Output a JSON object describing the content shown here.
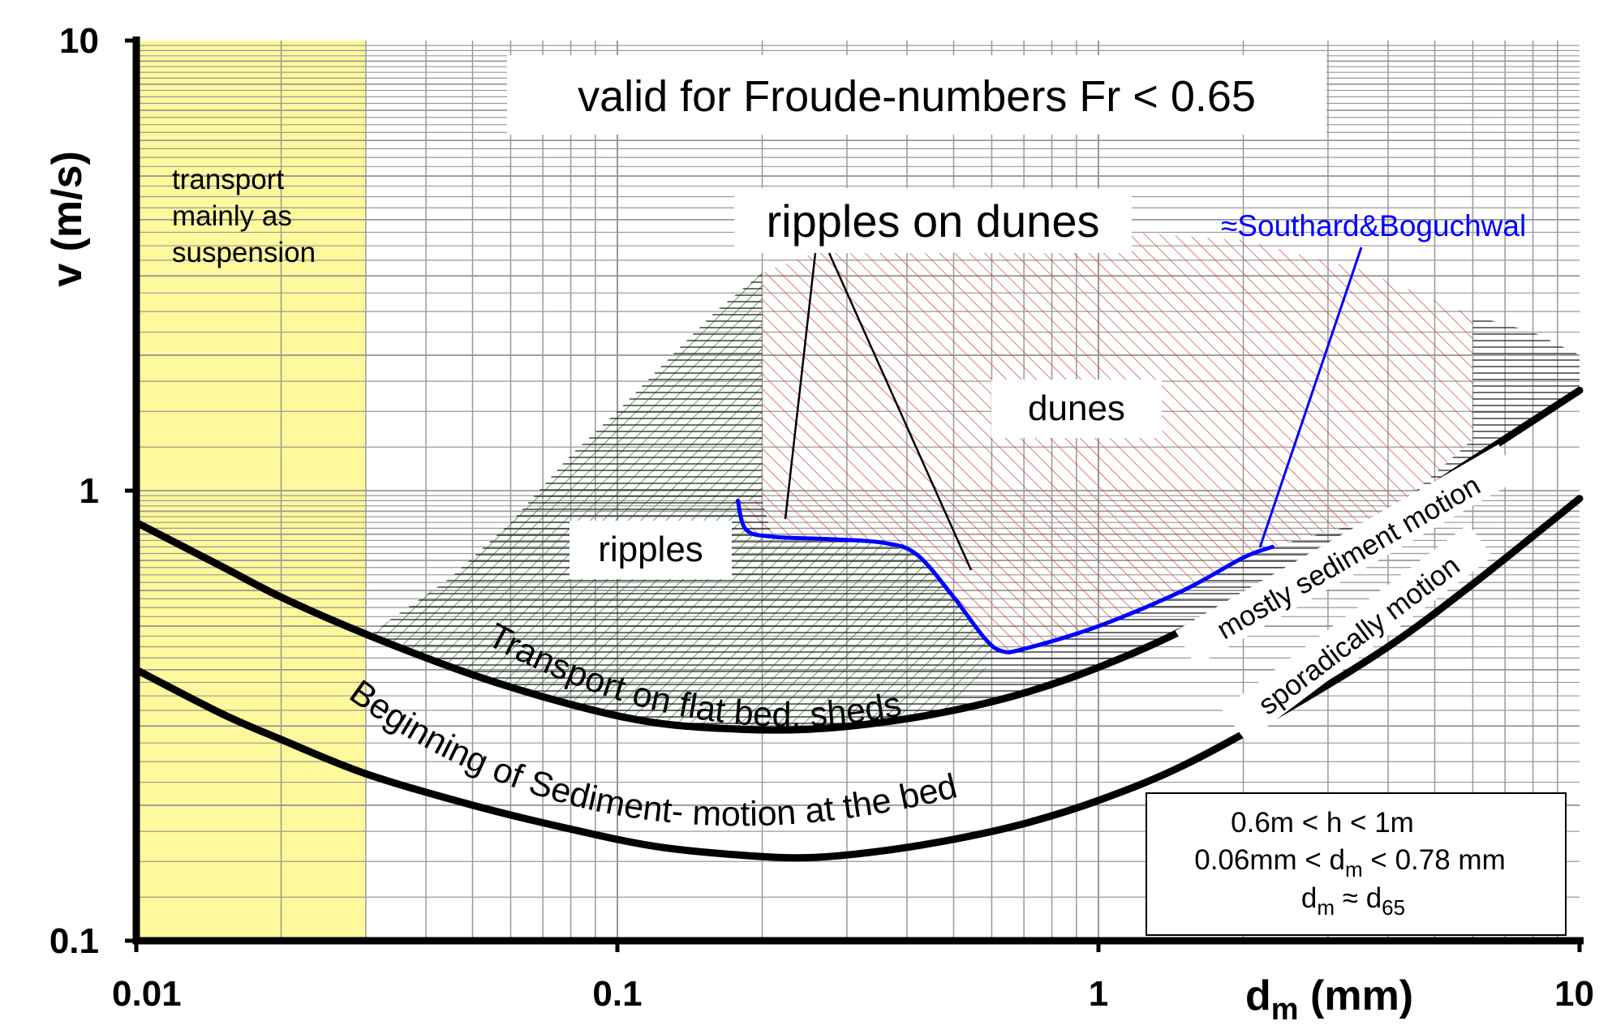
{
  "chart_data": {
    "type": "line",
    "xlabel": "d",
    "xlabel_sub": "m",
    "xlabel_unit": " (mm)",
    "ylabel": "v (m/s)",
    "x_scale": "log",
    "y_scale": "log",
    "xlim": [
      0.01,
      10
    ],
    "ylim": [
      0.1,
      10
    ],
    "grid": true,
    "x_ticks": [
      {
        "value": 0.01,
        "label": "0.01"
      },
      {
        "value": 0.1,
        "label": "0.1"
      },
      {
        "value": 1,
        "label": "1"
      },
      {
        "value": 10,
        "label": "10"
      }
    ],
    "y_ticks": [
      {
        "value": 0.1,
        "label": "0.1"
      },
      {
        "value": 1,
        "label": "1"
      },
      {
        "value": 10,
        "label": "10"
      }
    ],
    "suspension_zone": {
      "x_range": [
        0.01,
        0.03
      ],
      "label_lines": [
        "transport",
        "mainly as",
        "suspension"
      ],
      "color": "#fdf99c"
    },
    "series": [
      {
        "name": "mostly sediment motion",
        "color": "#000000",
        "x": [
          0.01,
          0.015,
          0.02,
          0.03,
          0.05,
          0.08,
          0.12,
          0.18,
          0.25,
          0.35,
          0.5,
          0.7,
          1.0,
          1.5,
          2.5,
          4,
          6,
          10
        ],
        "y": [
          0.85,
          0.68,
          0.58,
          0.48,
          0.39,
          0.335,
          0.305,
          0.295,
          0.295,
          0.305,
          0.325,
          0.355,
          0.405,
          0.49,
          0.66,
          0.88,
          1.17,
          1.67
        ]
      },
      {
        "name": "sporadically motion",
        "color": "#000000",
        "x": [
          0.01,
          0.015,
          0.02,
          0.03,
          0.05,
          0.08,
          0.12,
          0.18,
          0.25,
          0.35,
          0.5,
          0.7,
          1.0,
          1.5,
          2.5,
          4,
          6,
          10
        ],
        "y": [
          0.4,
          0.32,
          0.28,
          0.235,
          0.2,
          0.177,
          0.162,
          0.155,
          0.153,
          0.158,
          0.168,
          0.182,
          0.205,
          0.245,
          0.33,
          0.45,
          0.62,
          0.96
        ]
      },
      {
        "name": "≈Southard&Boguchwal",
        "color": "#0000ff",
        "x": [
          0.178,
          0.185,
          0.21,
          0.28,
          0.36,
          0.42,
          0.5,
          0.58,
          0.63,
          0.7,
          1.0,
          1.5,
          2.0,
          2.3
        ],
        "y": [
          0.95,
          0.82,
          0.79,
          0.78,
          0.765,
          0.72,
          0.58,
          0.47,
          0.44,
          0.445,
          0.5,
          0.6,
          0.71,
          0.75
        ]
      }
    ],
    "hatch_regions": [
      {
        "label": "ripples",
        "color": "#3a8a3a",
        "polygon": [
          [
            0.03,
            0.47
          ],
          [
            0.034,
            0.52
          ],
          [
            0.045,
            0.64
          ],
          [
            0.06,
            0.85
          ],
          [
            0.08,
            1.2
          ],
          [
            0.1,
            1.5
          ],
          [
            0.13,
            2.0
          ],
          [
            0.16,
            2.5
          ],
          [
            0.2,
            3.05
          ],
          [
            0.2,
            0.95
          ],
          [
            0.178,
            0.95
          ],
          [
            0.185,
            0.82
          ],
          [
            0.21,
            0.79
          ],
          [
            0.28,
            0.78
          ],
          [
            0.36,
            0.765
          ],
          [
            0.42,
            0.72
          ],
          [
            0.5,
            0.58
          ],
          [
            0.58,
            0.47
          ],
          [
            0.62,
            0.44
          ],
          [
            0.5,
            0.326
          ],
          [
            0.35,
            0.305
          ],
          [
            0.25,
            0.295
          ],
          [
            0.18,
            0.295
          ],
          [
            0.12,
            0.305
          ],
          [
            0.08,
            0.335
          ],
          [
            0.05,
            0.39
          ],
          [
            0.03,
            0.47
          ]
        ]
      },
      {
        "label": "dunes",
        "color": "#d04040",
        "polygon": [
          [
            0.2,
            3.05
          ],
          [
            0.3,
            3.6
          ],
          [
            0.5,
            3.8
          ],
          [
            1.0,
            3.8
          ],
          [
            2.0,
            3.6
          ],
          [
            3.5,
            3.1
          ],
          [
            6.0,
            2.45
          ],
          [
            6.0,
            1.3
          ],
          [
            4.0,
            0.88
          ],
          [
            2.3,
            0.75
          ],
          [
            2.0,
            0.71
          ],
          [
            1.5,
            0.6
          ],
          [
            1.0,
            0.5
          ],
          [
            0.7,
            0.445
          ],
          [
            0.62,
            0.44
          ],
          [
            0.58,
            0.47
          ],
          [
            0.5,
            0.58
          ],
          [
            0.42,
            0.72
          ],
          [
            0.36,
            0.765
          ],
          [
            0.28,
            0.78
          ],
          [
            0.21,
            0.79
          ],
          [
            0.185,
            0.82
          ],
          [
            0.178,
            0.95
          ],
          [
            0.2,
            0.95
          ]
        ]
      },
      {
        "label": "Transport on flat bed, sheds",
        "color": "#000000",
        "polygon": [
          [
            0.03,
            0.47
          ],
          [
            0.05,
            0.39
          ],
          [
            0.08,
            0.335
          ],
          [
            0.12,
            0.305
          ],
          [
            0.18,
            0.295
          ],
          [
            0.25,
            0.295
          ],
          [
            0.35,
            0.305
          ],
          [
            0.5,
            0.326
          ],
          [
            0.7,
            0.355
          ],
          [
            1.0,
            0.405
          ],
          [
            1.5,
            0.49
          ],
          [
            2.5,
            0.66
          ],
          [
            4.0,
            0.88
          ],
          [
            6.0,
            1.17
          ],
          [
            10,
            1.67
          ],
          [
            10,
            2.0
          ],
          [
            8.0,
            2.25
          ],
          [
            6.0,
            2.45
          ],
          [
            6.0,
            1.3
          ],
          [
            4.0,
            0.88
          ],
          [
            2.3,
            0.75
          ],
          [
            2.0,
            0.71
          ],
          [
            1.5,
            0.6
          ],
          [
            1.0,
            0.5
          ],
          [
            0.7,
            0.445
          ],
          [
            0.62,
            0.44
          ],
          [
            0.58,
            0.47
          ],
          [
            0.5,
            0.58
          ],
          [
            0.42,
            0.72
          ],
          [
            0.36,
            0.765
          ],
          [
            0.28,
            0.78
          ],
          [
            0.21,
            0.79
          ],
          [
            0.2,
            0.95
          ],
          [
            0.2,
            3.05
          ],
          [
            0.16,
            2.5
          ],
          [
            0.13,
            2.0
          ],
          [
            0.1,
            1.5
          ],
          [
            0.08,
            1.2
          ],
          [
            0.06,
            0.85
          ],
          [
            0.045,
            0.64
          ],
          [
            0.034,
            0.52
          ]
        ]
      }
    ],
    "annotations": {
      "froude": "valid for Froude-numbers Fr < 0.65",
      "ripples_on_dunes": "ripples on dunes",
      "ripples": "ripples",
      "dunes": "dunes",
      "transport_flat_bed": "Transport  on   flat   bed,  sheds",
      "beginning_motion": "Beginning  of  Sediment- motion  at  the  bed",
      "mostly_motion": "mostly sediment motion",
      "sporadic_motion": "sporadically motion",
      "southard": "≈Southard&Boguchwal",
      "conditions": {
        "line1": "0.6m < h < 1m",
        "line2_pre": "0.06mm < d",
        "line2_sub": "m",
        "line2_post": " < 0.78 mm",
        "line3_d1": "d",
        "line3_s1": "m",
        "line3_mid": " ≈ d",
        "line3_s2": "65"
      }
    }
  }
}
